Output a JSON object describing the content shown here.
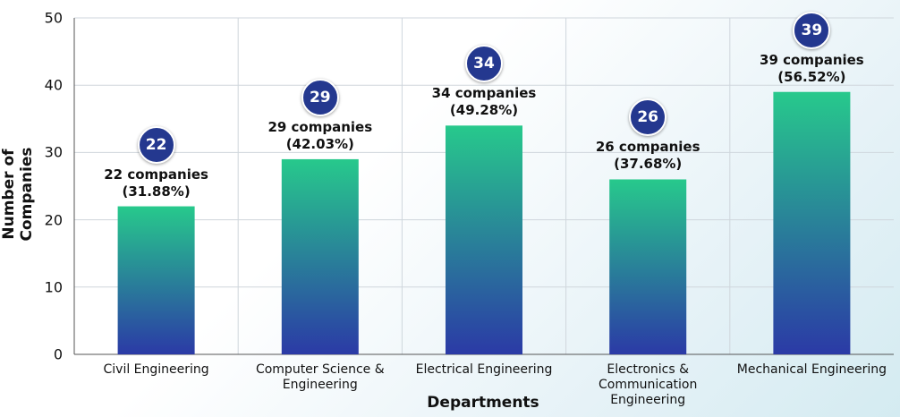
{
  "chart_data": {
    "type": "bar",
    "x_label": "Departments",
    "y_label": "Number of Companies",
    "categories": [
      "Civil Engineering",
      "Computer Science & Engineering",
      "Electrical Engineering",
      "Electronics & Communication Engineering",
      "Mechanical Engineering"
    ],
    "values": [
      22,
      29,
      34,
      26,
      39
    ],
    "value_labels": [
      "22 companies (31.88%)",
      "29 companies (42.03%)",
      "34 companies (49.28%)",
      "26 companies (37.68%)",
      "39 companies (56.52%)"
    ],
    "colors": [
      "#27c98c",
      "#2b3aa6"
    ],
    "ylim": [
      0,
      50
    ],
    "yticks": [
      0,
      10,
      20,
      30,
      40,
      50
    ],
    "grid": true
  }
}
